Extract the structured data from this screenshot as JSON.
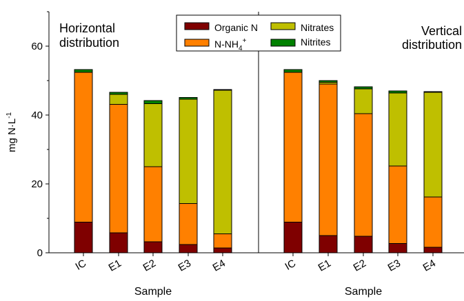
{
  "chart_data": {
    "type": "bar",
    "stacked": true,
    "ylabel": "mg N·L⁻¹",
    "ylabel_parts": {
      "main": "mg N·L",
      "sup": "-1"
    },
    "xlabel": "Sample",
    "ylim": [
      0,
      70
    ],
    "yticks": [
      0,
      20,
      40,
      60
    ],
    "legend": [
      {
        "name": "Organic N",
        "text": "Organic N"
      },
      {
        "name": "N-NH4+",
        "text": "N-NH",
        "sub": "4",
        "sup": "+"
      },
      {
        "name": "Nitrates",
        "text": "Nitrates"
      },
      {
        "name": "Nitrites",
        "text": "Nitrites"
      }
    ],
    "colors": {
      "Organic N": "#7f0000",
      "N-NH4+": "#ff8000",
      "Nitrates": "#bfbf00",
      "Nitrites": "#008000"
    },
    "panels": [
      {
        "title_lines": [
          "Horizontal",
          "distribution"
        ],
        "categories": [
          "IC",
          "E1",
          "E2",
          "E3",
          "E4"
        ],
        "series": [
          {
            "name": "Organic N",
            "values": [
              8.9,
              5.8,
              3.2,
              2.4,
              1.4
            ]
          },
          {
            "name": "N-NH4+",
            "values": [
              43.5,
              37.3,
              21.8,
              11.9,
              4.1
            ]
          },
          {
            "name": "Nitrates",
            "values": [
              0,
              2.9,
              18.3,
              30.3,
              41.7
            ]
          },
          {
            "name": "Nitrites",
            "values": [
              0.8,
              0.6,
              0.9,
              0.5,
              0.2
            ]
          }
        ]
      },
      {
        "title_lines": [
          "Vertical",
          "distribution"
        ],
        "categories": [
          "IC",
          "E1",
          "E2",
          "E3",
          "E4"
        ],
        "series": [
          {
            "name": "Organic N",
            "values": [
              8.9,
              5.0,
              4.8,
              2.7,
              1.6
            ]
          },
          {
            "name": "N-NH4+",
            "values": [
              43.5,
              44.0,
              35.6,
              22.5,
              14.6
            ]
          },
          {
            "name": "Nitrates",
            "values": [
              0,
              0.5,
              7.2,
              21.2,
              30.4
            ]
          },
          {
            "name": "Nitrites",
            "values": [
              0.8,
              0.5,
              0.6,
              0.6,
              0.2
            ]
          }
        ]
      }
    ]
  }
}
